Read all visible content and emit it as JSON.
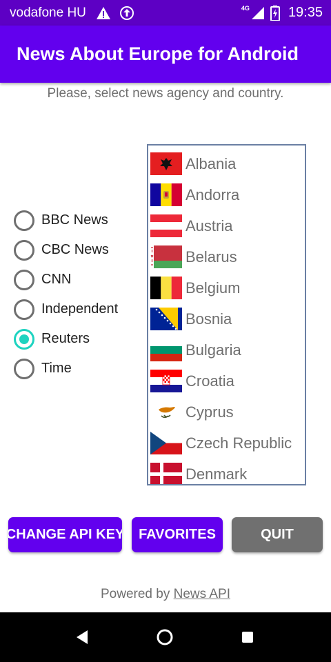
{
  "status_bar": {
    "carrier": "vodafone HU",
    "network": "4G",
    "time": "19:35",
    "icons": [
      "warning-icon",
      "upload-icon",
      "signal-icon",
      "battery-charging-icon"
    ]
  },
  "app_bar": {
    "title": "News About Europe for Android"
  },
  "instruction": "Please, select news agency and country.",
  "agencies": {
    "options": [
      "BBC News",
      "CBC News",
      "CNN",
      "Independent",
      "Reuters",
      "Time"
    ],
    "selected": "Reuters"
  },
  "countries": [
    "Albania",
    "Andorra",
    "Austria",
    "Belarus",
    "Belgium",
    "Bosnia",
    "Bulgaria",
    "Croatia",
    "Cyprus",
    "Czech Republic",
    "Denmark"
  ],
  "buttons": {
    "change_api_key": "CHANGE API KEY",
    "favorites": "FAVORITES",
    "quit": "QUIT"
  },
  "footer": {
    "prefix": "Powered by",
    "link": "News API"
  },
  "colors": {
    "status_bar": "#5d00c4",
    "app_bar": "#6200ee",
    "primary_button": "#6200ee",
    "quit_button": "#707070",
    "radio_checked": "#1dd3c0"
  },
  "nav_bar": {
    "icons": [
      "back-icon",
      "home-icon",
      "recents-icon"
    ]
  }
}
